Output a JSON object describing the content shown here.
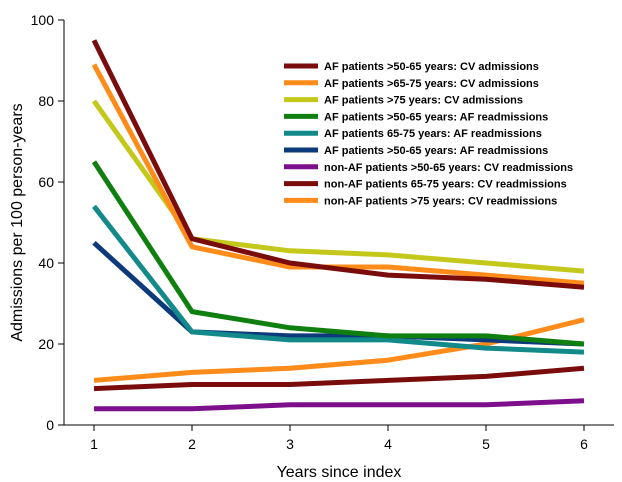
{
  "chart_data": {
    "type": "line",
    "xlabel": "Years since index",
    "ylabel": "Admissions per 100 person-years",
    "x": [
      1,
      2,
      3,
      4,
      5,
      6
    ],
    "xticks": [
      "1",
      "2",
      "3",
      "4",
      "5",
      "6"
    ],
    "ylim": [
      0,
      100
    ],
    "yticks": [
      "0",
      "20",
      "40",
      "60",
      "80",
      "100"
    ],
    "grid": false,
    "legend_position": "top-right",
    "series": [
      {
        "name": "AF patients >50-65 years: CV admissions",
        "color": "#7a0c0c",
        "values": [
          95,
          46,
          40,
          37,
          36,
          34
        ]
      },
      {
        "name": "AF patients >65-75 years: CV admissions",
        "color": "#ff8c1a",
        "values": [
          89,
          44,
          39,
          39,
          37,
          35
        ]
      },
      {
        "name": "AF patients >75 years: CV admissions",
        "color": "#c4c81a",
        "values": [
          80,
          46,
          43,
          42,
          40,
          38
        ]
      },
      {
        "name": "AF patients >50-65 years: AF readmissions",
        "color": "#0f7f0f",
        "values": [
          65,
          28,
          24,
          22,
          22,
          20
        ]
      },
      {
        "name": "AF patients 65-75 years: AF readmissions",
        "color": "#138a8a",
        "values": [
          54,
          23,
          21,
          21,
          19,
          18
        ]
      },
      {
        "name": "AF patients >50-65 years: AF readmissions",
        "color": "#0d3a7a",
        "values": [
          45,
          23,
          22,
          22,
          21,
          20
        ]
      },
      {
        "name": "non-AF patients >50-65 years: CV readmissions",
        "color": "#7e0f8c",
        "values": [
          4,
          4,
          5,
          5,
          5,
          6
        ]
      },
      {
        "name": "non-AF patients 65-75 years: CV readmissions",
        "color": "#7a0c0c",
        "values": [
          9,
          10,
          10,
          11,
          12,
          14
        ]
      },
      {
        "name": "non-AF patients >75 years: CV readmissions",
        "color": "#ff8c1a",
        "values": [
          11,
          13,
          14,
          16,
          20,
          26
        ]
      }
    ]
  }
}
